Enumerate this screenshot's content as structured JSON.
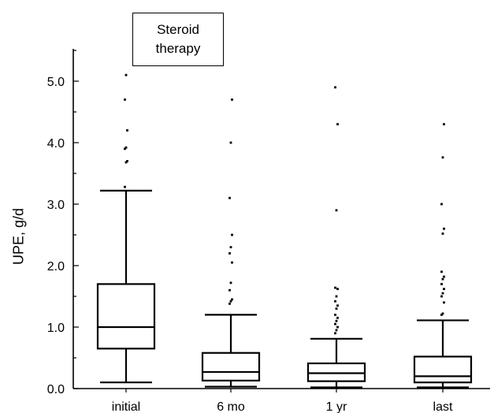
{
  "chart_data": {
    "type": "box",
    "title": "",
    "xlabel": "",
    "ylabel": "UPE, g/d",
    "ylim": [
      0,
      5.5
    ],
    "y_ticks": [
      "0.0",
      "1.0",
      "2.0",
      "3.0",
      "4.0",
      "5.0"
    ],
    "legend": {
      "lines": [
        "Steroid",
        "therapy"
      ],
      "placement": "top-left"
    },
    "categories": [
      "initial",
      "6 mo",
      "1  yr",
      "last"
    ],
    "boxes": [
      {
        "whisker_low": 0.1,
        "q1": 0.65,
        "median": 1.0,
        "q3": 1.7,
        "whisker_high": 3.22,
        "outliers": [
          3.28,
          3.68,
          3.7,
          3.9,
          3.92,
          4.2,
          4.7,
          5.1
        ]
      },
      {
        "whisker_low": 0.03,
        "q1": 0.13,
        "median": 0.27,
        "q3": 0.58,
        "whisker_high": 1.2,
        "outliers": [
          1.38,
          1.42,
          1.45,
          1.6,
          1.72,
          2.05,
          2.2,
          2.3,
          2.5,
          3.1,
          4.0,
          4.7
        ]
      },
      {
        "whisker_low": 0.02,
        "q1": 0.12,
        "median": 0.25,
        "q3": 0.41,
        "whisker_high": 0.81,
        "outliers": [
          0.9,
          0.95,
          1.0,
          1.05,
          1.1,
          1.15,
          1.2,
          1.3,
          1.35,
          1.42,
          1.5,
          1.62,
          1.64,
          2.9,
          4.3,
          4.9
        ]
      },
      {
        "whisker_low": 0.02,
        "q1": 0.1,
        "median": 0.2,
        "q3": 0.52,
        "whisker_high": 1.11,
        "outliers": [
          1.2,
          1.22,
          1.4,
          1.5,
          1.55,
          1.62,
          1.7,
          1.78,
          1.82,
          1.9,
          2.52,
          2.6,
          3.0,
          3.76,
          4.3
        ]
      }
    ]
  }
}
